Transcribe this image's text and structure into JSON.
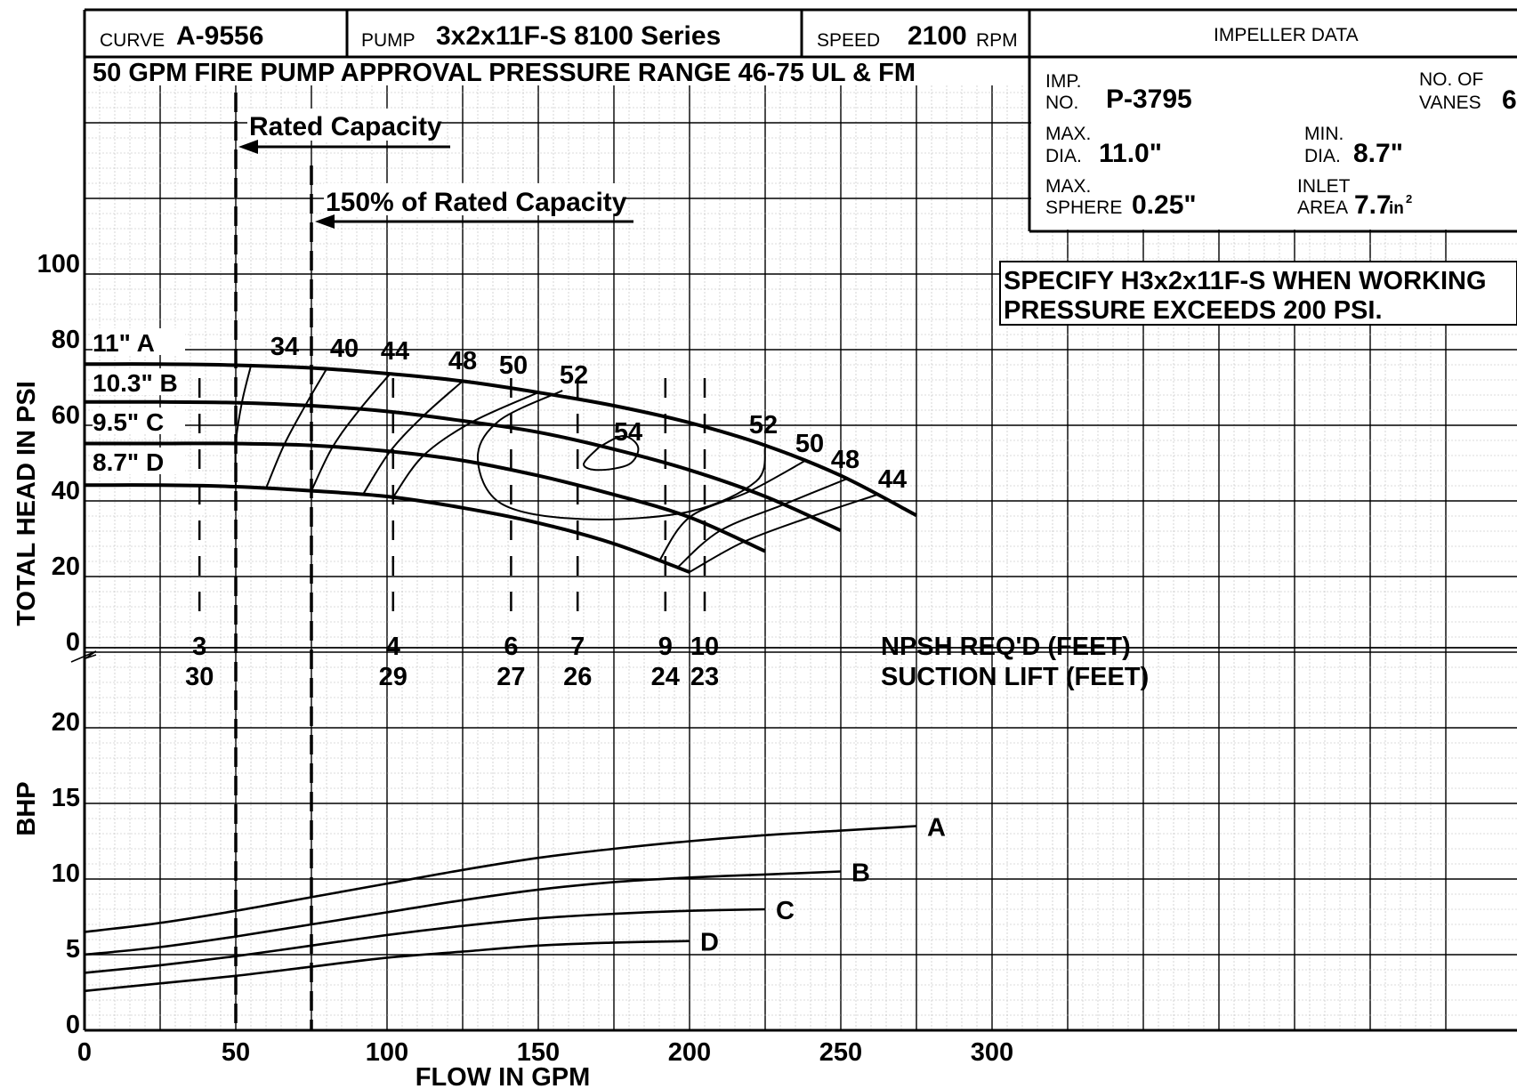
{
  "header": {
    "curve_label": "CURVE",
    "curve_value": "A-9556",
    "pump_label": "PUMP",
    "pump_value": "3x2x11F-S  8100 Series",
    "speed_label": "SPEED",
    "speed_value": "2100",
    "speed_unit": "RPM",
    "subtitle": "50 GPM FIRE PUMP APPROVAL PRESSURE RANGE 46-75 UL & FM"
  },
  "impeller": {
    "title": "IMPELLER DATA",
    "imp_no_label_1": "IMP.",
    "imp_no_label_2": "NO.",
    "imp_no": "P-3795",
    "vanes_label_1": "NO. OF",
    "vanes_label_2": "VANES",
    "vanes": "6",
    "max_dia_label_1": "MAX.",
    "max_dia_label_2": "DIA.",
    "max_dia": "11.0\"",
    "min_dia_label_1": "MIN.",
    "min_dia_label_2": "DIA.",
    "min_dia": "8.7\"",
    "max_sphere_label_1": "MAX.",
    "max_sphere_label_2": "SPHERE",
    "max_sphere": "0.25\"",
    "inlet_area_label_1": "INLET",
    "inlet_area_label_2": "AREA",
    "inlet_area": "7.7",
    "inlet_area_unit": "in",
    "inlet_area_exp": "2"
  },
  "note": {
    "line1": "SPECIFY H3x2x11F-S WHEN WORKING",
    "line2": "PRESSURE EXCEEDS 200 PSI."
  },
  "annotations": {
    "rated_capacity": "Rated Capacity",
    "rated_150": "150% of Rated Capacity",
    "npsh_label": "NPSH REQ'D (FEET)",
    "suction_label": "SUCTION LIFT (FEET)"
  },
  "chart_data": {
    "type": "line",
    "xlabel": "FLOW IN GPM",
    "x_ticks": [
      0,
      50,
      100,
      150,
      200,
      250,
      300
    ],
    "xlim": [
      0,
      450
    ],
    "head_panel": {
      "ylabel": "TOTAL HEAD IN PSI",
      "ylim": [
        0,
        100
      ],
      "y_ticks": [
        0,
        20,
        40,
        60,
        80,
        100
      ],
      "series": [
        {
          "name": "11\" A",
          "x": [
            0,
            25,
            50,
            75,
            100,
            125,
            150,
            175,
            200,
            225,
            250,
            275
          ],
          "y": [
            75,
            75,
            74.7,
            74,
            72.5,
            70.5,
            67.5,
            64,
            59.5,
            53.5,
            45.5,
            35
          ]
        },
        {
          "name": "10.3\" B",
          "x": [
            0,
            25,
            50,
            75,
            100,
            125,
            150,
            175,
            200,
            225,
            250
          ],
          "y": [
            65,
            65,
            64.8,
            64,
            62.5,
            60,
            57,
            52.5,
            47,
            40,
            31
          ]
        },
        {
          "name": "9.5\" C",
          "x": [
            0,
            25,
            50,
            75,
            100,
            125,
            150,
            175,
            200,
            225
          ],
          "y": [
            54,
            54,
            54,
            53.5,
            52,
            49.5,
            45.5,
            40.5,
            34.5,
            25.5
          ]
        },
        {
          "name": "8.7\" D",
          "x": [
            0,
            25,
            50,
            75,
            100,
            125,
            150,
            175,
            200
          ],
          "y": [
            43,
            43,
            42.6,
            41.5,
            40,
            37,
            33,
            27.5,
            20
          ]
        }
      ],
      "efficiency_labels": [
        "34",
        "40",
        "44",
        "48",
        "50",
        "52",
        "54",
        "52",
        "50",
        "48",
        "44"
      ],
      "npsh": [
        {
          "flow": 38,
          "npsh": "3",
          "suction_lift": "30"
        },
        {
          "flow": 102,
          "npsh": "4",
          "suction_lift": "29"
        },
        {
          "flow": 141,
          "npsh": "6",
          "suction_lift": "27"
        },
        {
          "flow": 163,
          "npsh": "7",
          "suction_lift": "26"
        },
        {
          "flow": 192,
          "npsh": "9",
          "suction_lift": "24"
        },
        {
          "flow": 205,
          "npsh": "10",
          "suction_lift": "23"
        }
      ],
      "rated_flow": 50,
      "rated_150_flow": 75
    },
    "bhp_panel": {
      "ylabel": "BHP",
      "ylim": [
        0,
        20
      ],
      "y_ticks": [
        0,
        5,
        10,
        15,
        20
      ],
      "series": [
        {
          "name": "A",
          "x": [
            0,
            25,
            50,
            75,
            100,
            125,
            150,
            175,
            200,
            225,
            250,
            275
          ],
          "y": [
            6.5,
            7.1,
            7.9,
            8.8,
            9.7,
            10.6,
            11.4,
            12.0,
            12.5,
            12.9,
            13.2,
            13.5
          ]
        },
        {
          "name": "B",
          "x": [
            0,
            25,
            50,
            75,
            100,
            125,
            150,
            175,
            200,
            225,
            250
          ],
          "y": [
            5.0,
            5.5,
            6.2,
            7.0,
            7.8,
            8.6,
            9.3,
            9.8,
            10.1,
            10.3,
            10.5
          ]
        },
        {
          "name": "C",
          "x": [
            0,
            25,
            50,
            75,
            100,
            125,
            150,
            175,
            200,
            225
          ],
          "y": [
            3.8,
            4.3,
            4.9,
            5.6,
            6.3,
            6.9,
            7.4,
            7.7,
            7.9,
            8.0
          ]
        },
        {
          "name": "D",
          "x": [
            0,
            25,
            50,
            75,
            100,
            125,
            150,
            175,
            200
          ],
          "y": [
            2.6,
            3.1,
            3.6,
            4.2,
            4.8,
            5.2,
            5.6,
            5.8,
            5.9
          ]
        }
      ]
    }
  }
}
